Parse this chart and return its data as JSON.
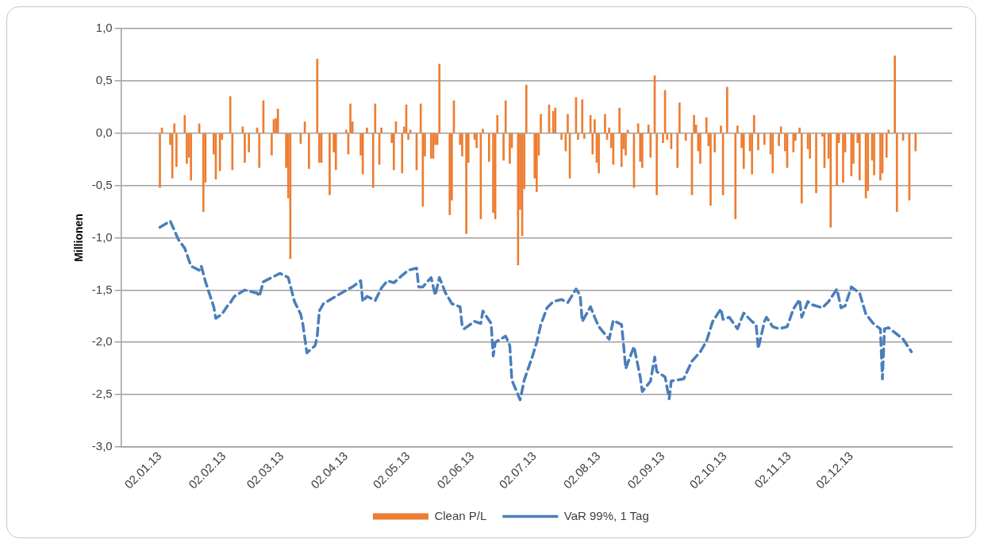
{
  "chart_data": {
    "type": "bar",
    "ylabel": "Millionen",
    "xlim": [
      "2012-12-31",
      "2014-01-03"
    ],
    "ylim": [
      -3,
      1
    ],
    "xticks": [
      {
        "value": "2013-01-02",
        "label": "02.01.13"
      },
      {
        "value": "2013-02-02",
        "label": "02.02.13"
      },
      {
        "value": "2013-03-02",
        "label": "02.03.13"
      },
      {
        "value": "2013-04-02",
        "label": "02.04.13"
      },
      {
        "value": "2013-05-02",
        "label": "02.05.13"
      },
      {
        "value": "2013-06-02",
        "label": "02.06.13"
      },
      {
        "value": "2013-07-02",
        "label": "02.07.13"
      },
      {
        "value": "2013-08-02",
        "label": "02.08.13"
      },
      {
        "value": "2013-09-02",
        "label": "02.09.13"
      },
      {
        "value": "2013-10-02",
        "label": "02.10.13"
      },
      {
        "value": "2013-11-02",
        "label": "02.11.13"
      },
      {
        "value": "2013-12-02",
        "label": "02.12.13"
      }
    ],
    "yticks": [
      {
        "value": 1,
        "label": "1,0"
      },
      {
        "value": 0.5,
        "label": "0,5"
      },
      {
        "value": 0,
        "label": "0,0"
      },
      {
        "value": -0.5,
        "label": "-0,5"
      },
      {
        "value": -1,
        "label": "-1,0"
      },
      {
        "value": -1.5,
        "label": "-1,5"
      },
      {
        "value": -2,
        "label": "-2,0"
      },
      {
        "value": -2.5,
        "label": "-2,5"
      },
      {
        "value": -3,
        "label": "-3,0"
      }
    ],
    "grid": "y",
    "legend": "bottom",
    "series": [
      {
        "name": "Clean P/L",
        "color": "#ed7d31",
        "x": [
          "2013-01-02",
          "2013-01-03",
          "2013-01-07",
          "2013-01-08",
          "2013-01-09",
          "2013-01-10",
          "2013-01-14",
          "2013-01-15",
          "2013-01-16",
          "2013-01-17",
          "2013-01-21",
          "2013-01-23",
          "2013-01-24",
          "2013-01-28",
          "2013-01-29",
          "2013-01-31",
          "2013-02-01",
          "2013-02-05",
          "2013-02-06",
          "2013-02-11",
          "2013-02-12",
          "2013-02-14",
          "2013-02-18",
          "2013-02-19",
          "2013-02-21",
          "2013-02-25",
          "2013-02-26",
          "2013-02-27",
          "2013-02-28",
          "2013-03-04",
          "2013-03-05",
          "2013-03-06",
          "2013-03-11",
          "2013-03-13",
          "2013-03-15",
          "2013-03-19",
          "2013-03-20",
          "2013-03-21",
          "2013-03-25",
          "2013-03-27",
          "2013-03-28",
          "2013-04-02",
          "2013-04-03",
          "2013-04-04",
          "2013-04-05",
          "2013-04-09",
          "2013-04-10",
          "2013-04-12",
          "2013-04-15",
          "2013-04-16",
          "2013-04-18",
          "2013-04-19",
          "2013-04-24",
          "2013-04-25",
          "2013-04-26",
          "2013-04-29",
          "2013-04-30",
          "2013-05-01",
          "2013-05-02",
          "2013-05-03",
          "2013-05-06",
          "2013-05-08",
          "2013-05-09",
          "2013-05-10",
          "2013-05-13",
          "2013-05-14",
          "2013-05-15",
          "2013-05-16",
          "2013-05-17",
          "2013-05-22",
          "2013-05-23",
          "2013-05-24",
          "2013-05-27",
          "2013-05-28",
          "2013-05-30",
          "2013-05-31",
          "2013-06-03",
          "2013-06-04",
          "2013-06-06",
          "2013-06-07",
          "2013-06-10",
          "2013-06-12",
          "2013-06-13",
          "2013-06-14",
          "2013-06-17",
          "2013-06-18",
          "2013-06-20",
          "2013-06-21",
          "2013-06-24",
          "2013-06-25",
          "2013-06-26",
          "2013-06-27",
          "2013-06-28",
          "2013-07-02",
          "2013-07-03",
          "2013-07-04",
          "2013-07-05",
          "2013-07-09",
          "2013-07-11",
          "2013-07-12",
          "2013-07-15",
          "2013-07-17",
          "2013-07-18",
          "2013-07-19",
          "2013-07-22",
          "2013-07-23",
          "2013-07-25",
          "2013-07-26",
          "2013-07-29",
          "2013-07-30",
          "2013-07-31",
          "2013-08-01",
          "2013-08-02",
          "2013-08-05",
          "2013-08-06",
          "2013-08-07",
          "2013-08-08",
          "2013-08-09",
          "2013-08-12",
          "2013-08-13",
          "2013-08-14",
          "2013-08-15",
          "2013-08-16",
          "2013-08-19",
          "2013-08-21",
          "2013-08-22",
          "2013-08-23",
          "2013-08-26",
          "2013-08-27",
          "2013-08-29",
          "2013-08-30",
          "2013-09-02",
          "2013-09-03",
          "2013-09-04",
          "2013-09-06",
          "2013-09-09",
          "2013-09-10",
          "2013-09-13",
          "2013-09-16",
          "2013-09-17",
          "2013-09-18",
          "2013-09-19",
          "2013-09-20",
          "2013-09-23",
          "2013-09-24",
          "2013-09-25",
          "2013-09-27",
          "2013-09-30",
          "2013-10-01",
          "2013-10-03",
          "2013-10-07",
          "2013-10-08",
          "2013-10-10",
          "2013-10-11",
          "2013-10-14",
          "2013-10-15",
          "2013-10-16",
          "2013-10-18",
          "2013-10-21",
          "2013-10-24",
          "2013-10-25",
          "2013-10-28",
          "2013-10-29",
          "2013-10-31",
          "2013-11-01",
          "2013-11-04",
          "2013-11-05",
          "2013-11-07",
          "2013-11-08",
          "2013-11-11",
          "2013-11-12",
          "2013-11-15",
          "2013-11-18",
          "2013-11-19",
          "2013-11-21",
          "2013-11-22",
          "2013-11-25",
          "2013-11-26",
          "2013-11-28",
          "2013-11-29",
          "2013-12-02",
          "2013-12-03",
          "2013-12-05",
          "2013-12-06",
          "2013-12-09",
          "2013-12-10",
          "2013-12-12",
          "2013-12-13",
          "2013-12-16",
          "2013-12-17",
          "2013-12-19",
          "2013-12-20",
          "2013-12-23",
          "2013-12-24",
          "2013-12-27",
          "2013-12-30",
          "2014-01-02"
        ],
        "values": [
          -0.52,
          0.05,
          -0.11,
          -0.43,
          0.09,
          -0.32,
          0.17,
          -0.29,
          -0.23,
          -0.45,
          0.09,
          -0.75,
          -0.47,
          -0.2,
          -0.44,
          -0.36,
          -0.06,
          0.35,
          -0.35,
          0.06,
          -0.28,
          -0.18,
          0.05,
          -0.33,
          0.31,
          -0.21,
          0.13,
          0.14,
          0.23,
          -0.33,
          -0.62,
          -1.2,
          -0.1,
          0.11,
          -0.34,
          0.71,
          -0.28,
          -0.28,
          -0.59,
          -0.18,
          -0.35,
          0.03,
          -0.2,
          0.28,
          0.11,
          -0.21,
          -0.39,
          0.05,
          -0.52,
          0.28,
          -0.3,
          0.05,
          -0.09,
          -0.35,
          0.11,
          -0.38,
          0.06,
          0.27,
          -0.06,
          0.03,
          -0.35,
          0.28,
          -0.7,
          -0.22,
          -0.24,
          -0.24,
          -0.11,
          -0.11,
          0.66,
          -0.78,
          -0.64,
          0.31,
          -0.11,
          -0.22,
          -0.96,
          -0.28,
          -0.06,
          -0.14,
          -0.82,
          0.04,
          -0.27,
          -0.76,
          -0.82,
          0.17,
          -0.26,
          0.31,
          -0.29,
          -0.14,
          -1.26,
          -0.73,
          -0.98,
          -0.53,
          0.46,
          -0.43,
          -0.56,
          -0.21,
          0.18,
          0.27,
          0.21,
          0.24,
          -0.06,
          -0.17,
          0.18,
          -0.43,
          0.34,
          -0.06,
          0.32,
          -0.05,
          0.17,
          -0.2,
          0.13,
          -0.28,
          -0.38,
          0.18,
          -0.06,
          0.05,
          -0.14,
          -0.3,
          0.24,
          -0.32,
          -0.15,
          -0.21,
          0.03,
          -0.52,
          0.09,
          -0.27,
          -0.33,
          0.08,
          -0.23,
          0.55,
          -0.59,
          -0.09,
          0.41,
          -0.06,
          -0.15,
          -0.33,
          0.29,
          -0.07,
          -0.59,
          0.17,
          0.08,
          -0.17,
          -0.29,
          0.15,
          -0.12,
          -0.69,
          -0.18,
          0.07,
          -0.59,
          0.44,
          -0.82,
          0.07,
          -0.14,
          -0.34,
          -0.17,
          -0.39,
          0.17,
          -0.16,
          -0.11,
          -0.2,
          -0.38,
          -0.12,
          0.06,
          -0.17,
          -0.33,
          -0.18,
          -0.07,
          0.05,
          -0.67,
          -0.15,
          -0.24,
          -0.57,
          -0.03,
          -0.33,
          -0.24,
          -0.9,
          -0.5,
          -0.09,
          -0.47,
          -0.18,
          -0.41,
          -0.29,
          -0.09,
          -0.45,
          -0.62,
          -0.55,
          -0.26,
          -0.4,
          -0.45,
          -0.38,
          -0.23,
          0.03,
          0.74,
          -0.75,
          -0.07,
          -0.64,
          -0.17
        ]
      },
      {
        "name": "VaR 99%, 1 Tag",
        "type": "line",
        "color": "#4a7ebb",
        "line_style": "dashed",
        "marker": "none",
        "x": [
          "2013-01-02",
          "2013-01-07",
          "2013-01-11",
          "2013-01-14",
          "2013-01-17",
          "2013-01-21",
          "2013-01-22",
          "2013-01-24",
          "2013-01-28",
          "2013-01-29",
          "2013-02-01",
          "2013-02-04",
          "2013-02-05",
          "2013-02-07",
          "2013-02-12",
          "2013-02-18",
          "2013-02-19",
          "2013-02-21",
          "2013-02-26",
          "2013-03-01",
          "2013-03-05",
          "2013-03-08",
          "2013-03-11",
          "2013-03-12",
          "2013-03-14",
          "2013-03-18",
          "2013-03-19",
          "2013-03-20",
          "2013-03-22",
          "2013-03-28",
          "2013-04-03",
          "2013-04-05",
          "2013-04-09",
          "2013-04-10",
          "2013-04-12",
          "2013-04-16",
          "2013-04-19",
          "2013-04-22",
          "2013-04-25",
          "2013-04-29",
          "2013-05-02",
          "2013-05-06",
          "2013-05-07",
          "2013-05-09",
          "2013-05-13",
          "2013-05-15",
          "2013-05-17",
          "2013-05-20",
          "2013-05-21",
          "2013-05-23",
          "2013-05-27",
          "2013-05-28",
          "2013-05-29",
          "2013-06-03",
          "2013-06-06",
          "2013-06-07",
          "2013-06-11",
          "2013-06-12",
          "2013-06-13",
          "2013-06-18",
          "2013-06-20",
          "2013-06-21",
          "2013-06-25",
          "2013-06-27",
          "2013-07-01",
          "2013-07-03",
          "2013-07-05",
          "2013-07-08",
          "2013-07-11",
          "2013-07-15",
          "2013-07-18",
          "2013-07-22",
          "2013-07-24",
          "2013-07-25",
          "2013-07-29",
          "2013-07-31",
          "2013-08-02",
          "2013-08-07",
          "2013-08-09",
          "2013-08-13",
          "2013-08-14",
          "2013-08-15",
          "2013-08-19",
          "2013-08-22",
          "2013-08-23",
          "2013-08-27",
          "2013-08-29",
          "2013-08-30",
          "2013-09-03",
          "2013-09-05",
          "2013-09-06",
          "2013-09-12",
          "2013-09-16",
          "2013-09-20",
          "2013-09-23",
          "2013-09-26",
          "2013-09-30",
          "2013-10-01",
          "2013-10-04",
          "2013-10-08",
          "2013-10-11",
          "2013-10-15",
          "2013-10-17",
          "2013-10-18",
          "2013-10-21",
          "2013-10-22",
          "2013-10-25",
          "2013-10-28",
          "2013-11-01",
          "2013-11-04",
          "2013-11-07",
          "2013-11-08",
          "2013-11-11",
          "2013-11-13",
          "2013-11-18",
          "2013-11-21",
          "2013-11-25",
          "2013-11-27",
          "2013-11-29",
          "2013-12-02",
          "2013-12-06",
          "2013-12-09",
          "2013-12-13",
          "2013-12-16",
          "2013-12-17",
          "2013-12-18",
          "2013-12-20",
          "2013-12-27",
          "2013-12-31"
        ],
        "values": [
          -0.9,
          -0.84,
          -1.02,
          -1.1,
          -1.27,
          -1.31,
          -1.27,
          -1.42,
          -1.66,
          -1.77,
          -1.73,
          -1.64,
          -1.62,
          -1.56,
          -1.5,
          -1.53,
          -1.56,
          -1.42,
          -1.37,
          -1.34,
          -1.38,
          -1.61,
          -1.73,
          -1.82,
          -2.1,
          -2.03,
          -1.94,
          -1.7,
          -1.63,
          -1.56,
          -1.49,
          -1.47,
          -1.41,
          -1.61,
          -1.56,
          -1.6,
          -1.48,
          -1.41,
          -1.43,
          -1.36,
          -1.31,
          -1.29,
          -1.47,
          -1.47,
          -1.38,
          -1.55,
          -1.38,
          -1.53,
          -1.56,
          -1.63,
          -1.66,
          -1.84,
          -1.87,
          -1.8,
          -1.82,
          -1.7,
          -1.82,
          -2.13,
          -2.0,
          -1.94,
          -2.03,
          -2.36,
          -2.55,
          -2.36,
          -2.13,
          -2.0,
          -1.83,
          -1.67,
          -1.61,
          -1.59,
          -1.62,
          -1.49,
          -1.55,
          -1.8,
          -1.66,
          -1.76,
          -1.85,
          -1.97,
          -1.79,
          -1.83,
          -2.03,
          -2.25,
          -2.04,
          -2.33,
          -2.47,
          -2.37,
          -2.14,
          -2.28,
          -2.33,
          -2.54,
          -2.37,
          -2.35,
          -2.18,
          -2.09,
          -1.99,
          -1.8,
          -1.68,
          -1.78,
          -1.76,
          -1.87,
          -1.72,
          -1.8,
          -1.83,
          -2.06,
          -1.8,
          -1.76,
          -1.85,
          -1.87,
          -1.85,
          -1.68,
          -1.59,
          -1.76,
          -1.61,
          -1.64,
          -1.67,
          -1.61,
          -1.49,
          -1.67,
          -1.65,
          -1.47,
          -1.53,
          -1.73,
          -1.83,
          -1.87,
          -2.35,
          -1.87,
          -1.86,
          -1.97,
          -2.09
        ]
      }
    ]
  }
}
